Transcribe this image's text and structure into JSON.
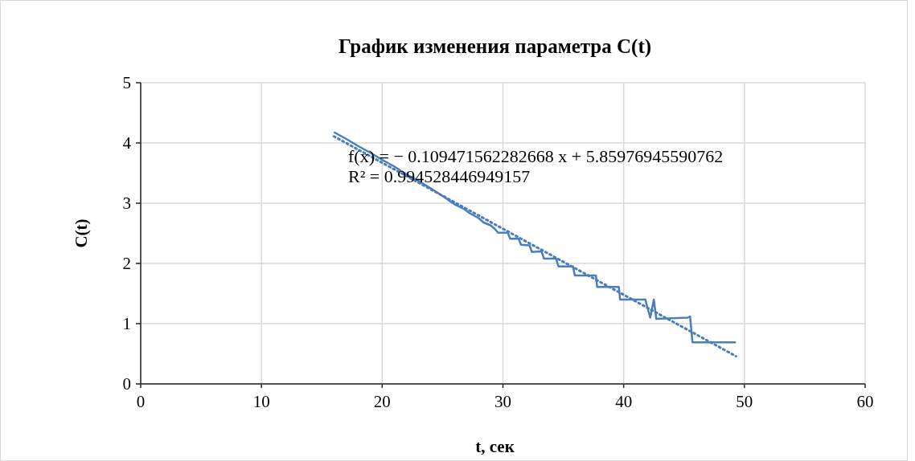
{
  "chart_data": {
    "type": "line",
    "title": "График изменения параметра C(t)",
    "xlabel": "t, сек",
    "ylabel": "C(t)",
    "xlim": [
      0,
      60
    ],
    "xticks": [
      0,
      10,
      20,
      30,
      40,
      50,
      60
    ],
    "ylim": [
      0,
      5
    ],
    "yticks": [
      0,
      1,
      2,
      3,
      4,
      5
    ],
    "grid": true,
    "annotations": [
      "f(x) = − 0.109471562282668 x + 5.85976945590762",
      "R² = 0.994528446949157"
    ],
    "series": [
      {
        "color": "#4a7ebb",
        "line_style": "solid",
        "x": [
          16,
          17,
          18,
          19,
          20,
          21,
          22,
          23,
          24,
          25,
          26,
          26.8,
          27.2,
          28,
          28.4,
          29,
          29.3,
          29.6,
          30.4,
          30.6,
          31.3,
          31.5,
          32.2,
          32.4,
          33.2,
          33.4,
          34.4,
          34.6,
          35.8,
          35.95,
          37.7,
          37.8,
          39.6,
          39.7,
          41.8,
          41.9,
          42.2,
          42.5,
          42.7,
          45.3,
          45.5,
          45.7,
          49.3
        ],
        "values": [
          4.18,
          4.07,
          3.95,
          3.84,
          3.72,
          3.61,
          3.48,
          3.37,
          3.25,
          3.12,
          2.98,
          2.9,
          2.84,
          2.75,
          2.68,
          2.63,
          2.58,
          2.51,
          2.51,
          2.41,
          2.41,
          2.31,
          2.3,
          2.19,
          2.2,
          2.08,
          2.08,
          1.95,
          1.95,
          1.8,
          1.8,
          1.61,
          1.61,
          1.4,
          1.4,
          1.32,
          1.1,
          1.4,
          1.08,
          1.1,
          1.12,
          0.69,
          0.69
        ]
      },
      {
        "type": "line",
        "color": "#4a7ebb",
        "line_style": "dotted",
        "x": [
          16,
          49.3
        ],
        "values": [
          4.11,
          0.46
        ]
      }
    ]
  }
}
